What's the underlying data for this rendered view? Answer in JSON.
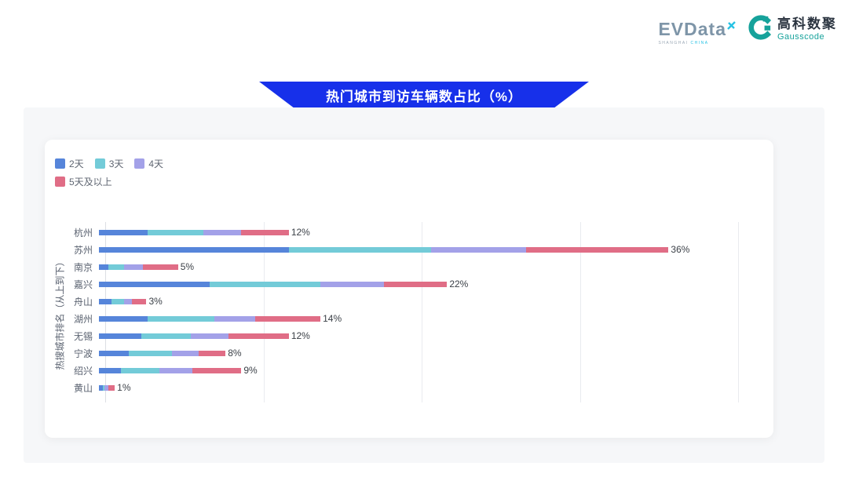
{
  "header": {
    "evdata": {
      "name": "EVData",
      "sub_left": "SHANGHAI",
      "sub_right": "CHINA"
    },
    "gausscode": {
      "cn": "高科数聚",
      "en": "Gausscode"
    }
  },
  "banner": {
    "title": "热门城市到访车辆数占比（%）"
  },
  "colors": {
    "banner_blue": "#1730ea",
    "panel_gray": "#f6f7f9",
    "series_blue": "#5685da",
    "series_teal": "#73cbd8",
    "series_purple": "#a3a1e8",
    "series_pink": "#e06d86",
    "evdata_gray": "#7e95a8",
    "evdata_cyan": "#27c2e4",
    "gauss_teal": "#16a29b"
  },
  "chart_data": {
    "type": "bar",
    "orientation": "horizontal",
    "stacked": true,
    "title": "热门城市到访车辆数占比（%）",
    "ylabel": "热搜城市排名（从上到下）",
    "xlabel": "",
    "xlim": [
      0,
      40
    ],
    "gridlines": [
      10,
      20,
      30,
      40
    ],
    "grid": true,
    "legend_position": "top-left",
    "categories": [
      "杭州",
      "苏州",
      "南京",
      "嘉兴",
      "舟山",
      "湖州",
      "无锡",
      "宁波",
      "绍兴",
      "黄山"
    ],
    "series": [
      {
        "name": "2天",
        "color": "#5685da",
        "values": [
          3.1,
          12,
          0.6,
          7,
          0.8,
          3.1,
          2.7,
          1.9,
          1.4,
          0.25
        ]
      },
      {
        "name": "3天",
        "color": "#73cbd8",
        "values": [
          3.5,
          9,
          1.0,
          7,
          0.8,
          4.2,
          3.1,
          2.7,
          2.4,
          0.1
        ]
      },
      {
        "name": "4天",
        "color": "#a3a1e8",
        "values": [
          2.4,
          6,
          1.2,
          4,
          0.5,
          2.6,
          2.4,
          1.7,
          2.1,
          0.25
        ]
      },
      {
        "name": "5天及以上",
        "color": "#e06d86",
        "values": [
          3.0,
          9,
          2.2,
          4,
          0.9,
          4.1,
          3.8,
          1.7,
          3.1,
          0.4
        ]
      }
    ],
    "totals": [
      12,
      36,
      5,
      22,
      3,
      14,
      12,
      8,
      9,
      1
    ],
    "total_labels": [
      "12%",
      "36%",
      "5%",
      "22%",
      "3%",
      "14%",
      "12%",
      "8%",
      "9%",
      "1%"
    ]
  }
}
